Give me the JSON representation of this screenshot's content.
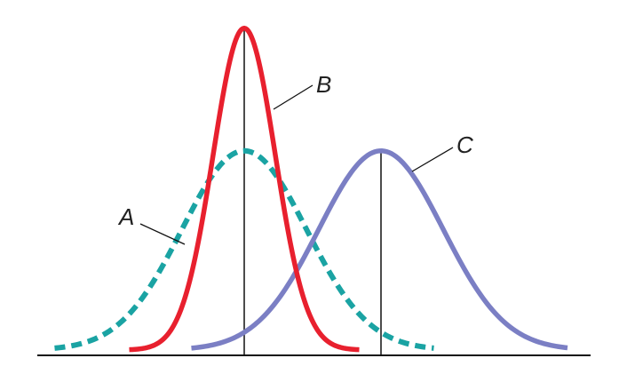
{
  "chart_data": {
    "type": "line",
    "title": "",
    "xlabel": "",
    "ylabel": "",
    "axis_color": "#111111",
    "series": [
      {
        "name": "A",
        "mean": 0.0,
        "sd": 1.0,
        "peak": 0.39,
        "x_range": [
          -3.05,
          3.05
        ],
        "style": "dashed",
        "color": "#1aa3a3"
      },
      {
        "name": "B",
        "mean": 0.0,
        "sd": 0.5,
        "peak": 0.63,
        "x_range": [
          -1.85,
          1.85
        ],
        "style": "solid",
        "color": "#e8202e"
      },
      {
        "name": "C",
        "mean": 2.2,
        "sd": 1.0,
        "peak": 0.39,
        "x_range": [
          -0.85,
          5.2
        ],
        "style": "solid",
        "color": "#7b7fc4"
      }
    ],
    "reference_lines": [
      {
        "at_series": "B",
        "x": 0.0
      },
      {
        "at_series": "C",
        "x": 2.2
      }
    ]
  }
}
